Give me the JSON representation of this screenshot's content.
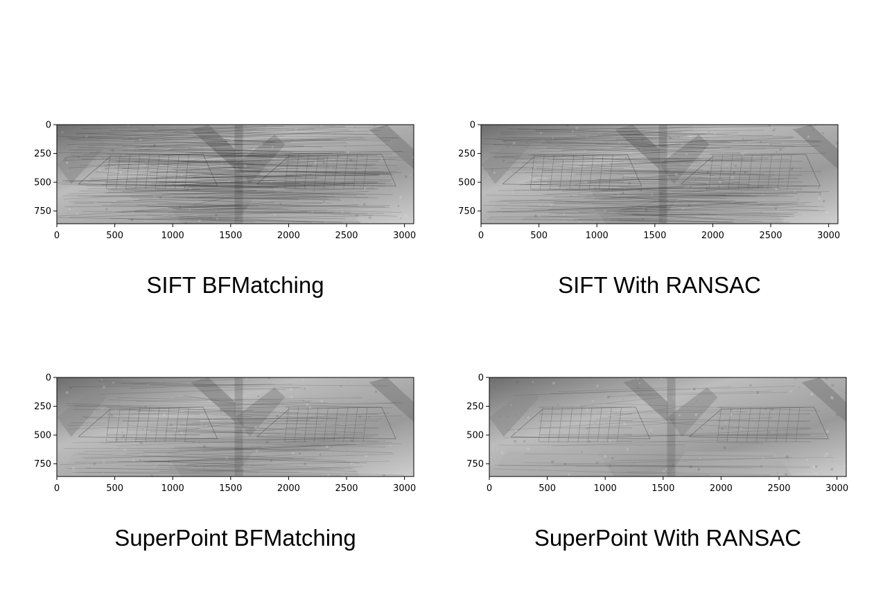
{
  "panels": [
    {
      "id": "sift-bf",
      "caption": "SIFT BFMatching",
      "x_ticks": [
        "0",
        "500",
        "1000",
        "1500",
        "2000",
        "2500",
        "3000"
      ],
      "y_ticks": [
        "0",
        "250",
        "500",
        "750"
      ],
      "x_range": [
        0,
        3080
      ],
      "y_range": [
        0,
        860
      ],
      "match_lines": 190,
      "line_opacity": 0.22
    },
    {
      "id": "sift-ransac",
      "caption": "SIFT With RANSAC",
      "x_ticks": [
        "0",
        "500",
        "1000",
        "1500",
        "2000",
        "2500",
        "3000"
      ],
      "y_ticks": [
        "0",
        "250",
        "500",
        "750"
      ],
      "x_range": [
        0,
        3080
      ],
      "y_range": [
        0,
        860
      ],
      "match_lines": 150,
      "line_opacity": 0.2
    },
    {
      "id": "superpoint-bf",
      "caption": "SuperPoint BFMatching",
      "x_ticks": [
        "0",
        "500",
        "1000",
        "1500",
        "2000",
        "2500",
        "3000"
      ],
      "y_ticks": [
        "0",
        "250",
        "500",
        "750"
      ],
      "x_range": [
        0,
        3080
      ],
      "y_range": [
        0,
        860
      ],
      "match_lines": 80,
      "line_opacity": 0.18
    },
    {
      "id": "superpoint-ransac",
      "caption": "SuperPoint With RANSAC",
      "x_ticks": [
        "0",
        "500",
        "1000",
        "1500",
        "2000",
        "2500",
        "3000"
      ],
      "y_ticks": [
        "0",
        "250",
        "500",
        "750"
      ],
      "x_range": [
        0,
        3080
      ],
      "y_range": [
        0,
        860
      ],
      "match_lines": 30,
      "line_opacity": 0.16
    }
  ]
}
